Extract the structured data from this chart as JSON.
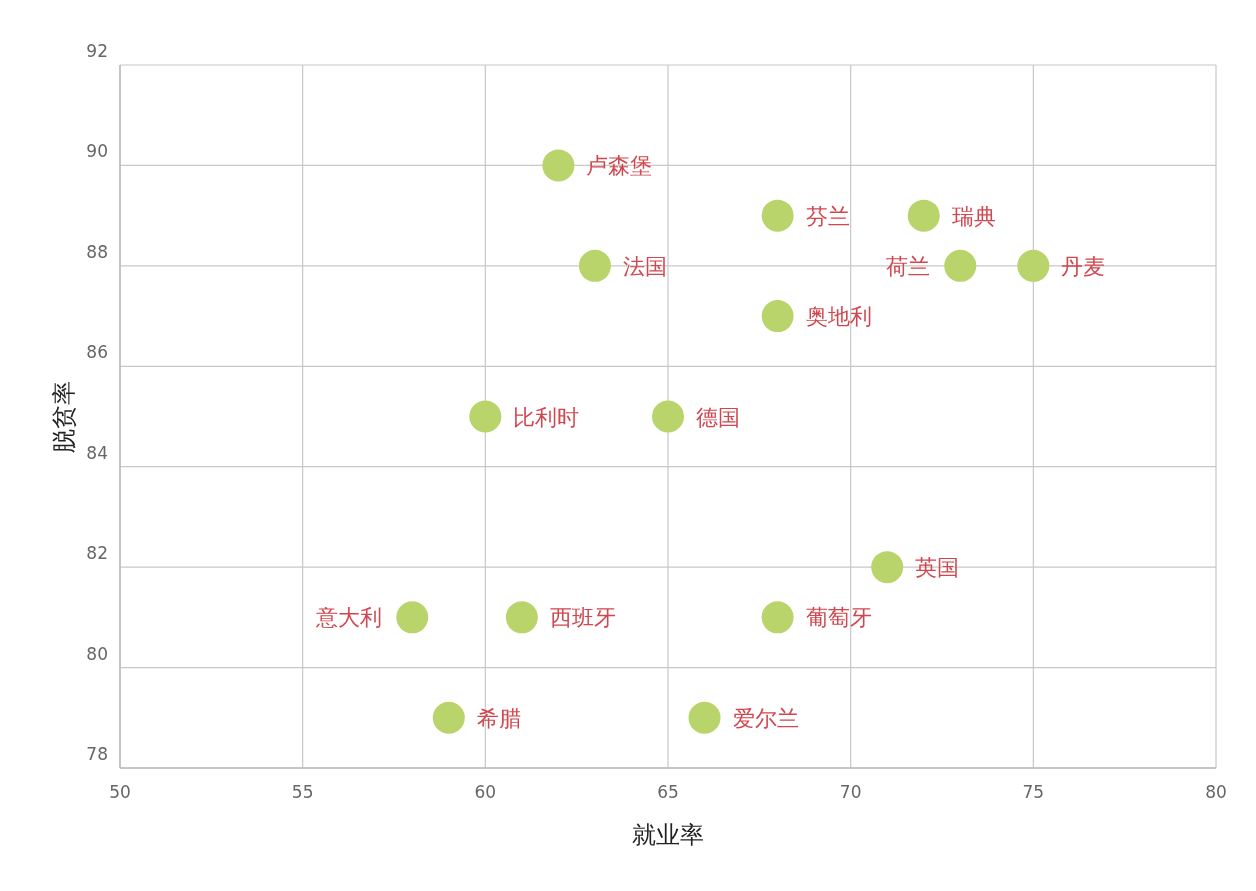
{
  "chart_data": {
    "type": "scatter",
    "xlabel": "就业率",
    "ylabel": "脱贫率",
    "xlim": [
      50,
      80
    ],
    "ylim": [
      78,
      92
    ],
    "xticks": [
      50,
      55,
      60,
      65,
      70,
      75,
      80
    ],
    "yticks": [
      78,
      80,
      82,
      84,
      86,
      88,
      90,
      92
    ],
    "grid": true,
    "marker": "circle",
    "color": "#b8d46a",
    "x": [
      62,
      68,
      72,
      63,
      73,
      75,
      68,
      60,
      65,
      71,
      58,
      61,
      68,
      59,
      66
    ],
    "values": [
      90,
      89,
      89,
      88,
      88,
      88,
      87,
      85,
      85,
      82,
      81,
      81,
      81,
      79,
      79
    ],
    "annotations": [
      {
        "text": "卢森堡",
        "x": 62,
        "y": 90
      },
      {
        "text": "芬兰",
        "x": 68,
        "y": 89
      },
      {
        "text": "瑞典",
        "x": 72,
        "y": 89
      },
      {
        "text": "法国",
        "x": 63,
        "y": 88
      },
      {
        "text": "荷兰",
        "x": 73,
        "y": 88
      },
      {
        "text": "丹麦",
        "x": 75,
        "y": 88
      },
      {
        "text": "奥地利",
        "x": 68,
        "y": 87
      },
      {
        "text": "比利时",
        "x": 60,
        "y": 85
      },
      {
        "text": "德国",
        "x": 65,
        "y": 85
      },
      {
        "text": "英国",
        "x": 71,
        "y": 82
      },
      {
        "text": "意大利",
        "x": 58,
        "y": 81
      },
      {
        "text": "西班牙",
        "x": 61,
        "y": 81
      },
      {
        "text": "葡萄牙",
        "x": 68,
        "y": 81
      },
      {
        "text": "希腊",
        "x": 59,
        "y": 79
      },
      {
        "text": "爱尔兰",
        "x": 66,
        "y": 79
      }
    ]
  }
}
